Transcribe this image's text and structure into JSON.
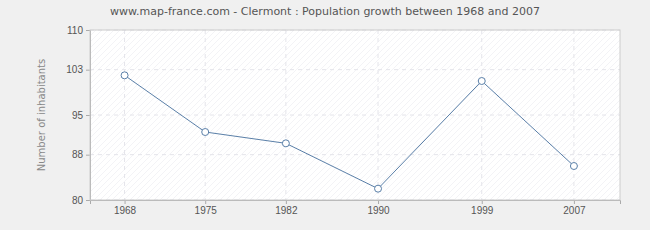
{
  "chart_data": {
    "type": "line",
    "title": "www.map-france.com - Clermont : Population growth between 1968 and 2007",
    "y_label": "Number of inhabitants",
    "x": [
      1968,
      1975,
      1982,
      1990,
      1999,
      2007
    ],
    "values": [
      102,
      92,
      90,
      82,
      101,
      86
    ],
    "xlim": [
      1965,
      2011
    ],
    "xticks": [
      1968,
      1975,
      1982,
      1990,
      1999,
      2007
    ],
    "ylim": [
      80,
      110
    ],
    "yticks": [
      80,
      88,
      95,
      103,
      110
    ],
    "grid": true,
    "color": "#5a7fa8",
    "marker": "circle"
  }
}
